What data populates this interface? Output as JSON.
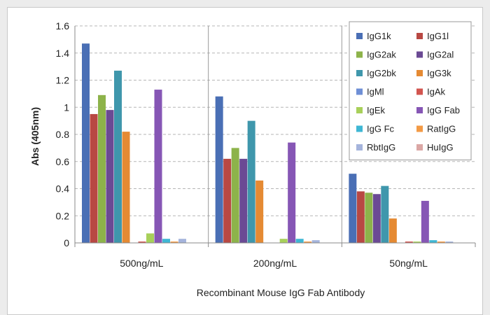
{
  "chart_data": {
    "type": "bar",
    "title": "",
    "xlabel": "Recombinant Mouse IgG Fab Antibody",
    "ylabel": "Abs (405nm)",
    "ylim": [
      0,
      1.6
    ],
    "yticks": [
      "0",
      "0.2",
      "0.4",
      "0.6",
      "0.8",
      "1",
      "1.2",
      "1.4",
      "1.6"
    ],
    "grid": "horizontal dashed",
    "legend_position": "top-right",
    "categories": [
      "500ng/mL",
      "200ng/mL",
      "50ng/mL"
    ],
    "series": [
      {
        "name": "IgG1k",
        "color": "#4a6fb5",
        "values": [
          1.47,
          1.08,
          0.51
        ]
      },
      {
        "name": "IgG1l",
        "color": "#b84843",
        "values": [
          0.95,
          0.62,
          0.38
        ]
      },
      {
        "name": "IgG2ak",
        "color": "#8db34a",
        "values": [
          1.09,
          0.7,
          0.37
        ]
      },
      {
        "name": "IgG2al",
        "color": "#6b4a94",
        "values": [
          0.98,
          0.62,
          0.36
        ]
      },
      {
        "name": "IgG2bk",
        "color": "#3f97ac",
        "values": [
          1.27,
          0.9,
          0.42
        ]
      },
      {
        "name": "IgG3k",
        "color": "#e58a33",
        "values": [
          0.82,
          0.46,
          0.18
        ]
      },
      {
        "name": "IgMl",
        "color": "#6f8fd6",
        "values": [
          0.0,
          0.0,
          0.0
        ]
      },
      {
        "name": "IgAk",
        "color": "#d2554f",
        "values": [
          0.01,
          0.0,
          0.01
        ]
      },
      {
        "name": "IgEk",
        "color": "#a8d05a",
        "values": [
          0.07,
          0.03,
          0.01
        ]
      },
      {
        "name": "IgG Fab",
        "color": "#8656b5",
        "values": [
          1.13,
          0.74,
          0.31
        ]
      },
      {
        "name": "IgG Fc",
        "color": "#3fb7d4",
        "values": [
          0.03,
          0.03,
          0.02
        ]
      },
      {
        "name": "RatIgG",
        "color": "#f39a45",
        "values": [
          0.01,
          0.01,
          0.01
        ]
      },
      {
        "name": "RbtIgG",
        "color": "#a5b4dc",
        "values": [
          0.03,
          0.02,
          0.01
        ]
      },
      {
        "name": "HuIgG",
        "color": "#dba7a5",
        "values": [
          0.0,
          0.0,
          0.0
        ]
      }
    ]
  }
}
